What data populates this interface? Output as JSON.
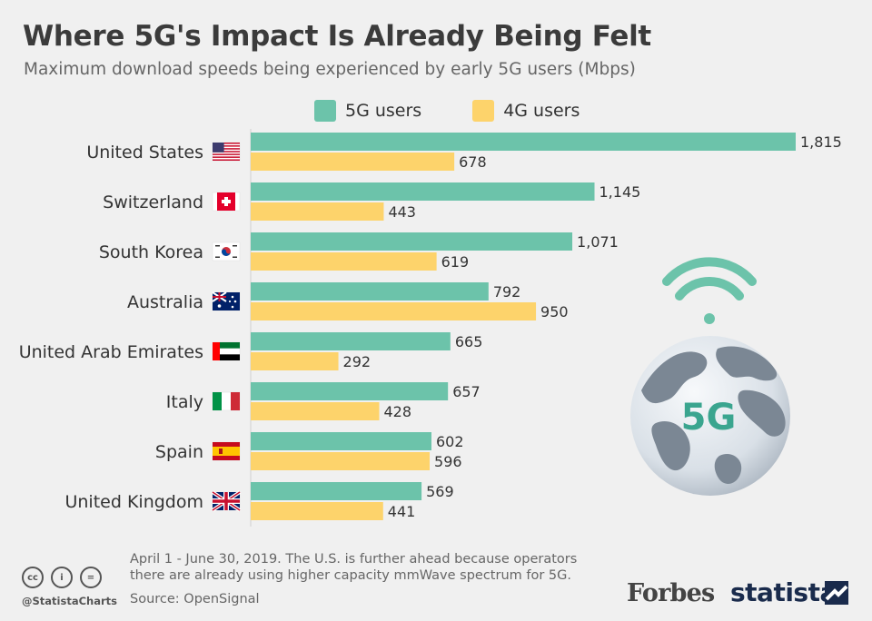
{
  "header": {
    "title": "Where 5G's Impact Is Already Being Felt",
    "subtitle": "Maximum download speeds being experienced by early 5G users (Mbps)"
  },
  "legend": {
    "items": [
      {
        "label": "5G users",
        "color": "#6cc3aa"
      },
      {
        "label": "4G users",
        "color": "#fdd36b"
      }
    ]
  },
  "chart_data": {
    "type": "bar",
    "orientation": "horizontal",
    "categories": [
      "United States",
      "Switzerland",
      "South Korea",
      "Australia",
      "United Arab Emirates",
      "Italy",
      "Spain",
      "United Kingdom"
    ],
    "series": [
      {
        "name": "5G users",
        "color": "#6cc3aa",
        "values": [
          1815,
          1145,
          1071,
          792,
          665,
          657,
          602,
          569
        ],
        "labels": [
          "1,815",
          "1,145",
          "1,071",
          "792",
          "665",
          "657",
          "602",
          "569"
        ]
      },
      {
        "name": "4G users",
        "color": "#fdd36b",
        "values": [
          678,
          443,
          619,
          950,
          292,
          428,
          596,
          441
        ],
        "labels": [
          "678",
          "443",
          "619",
          "950",
          "292",
          "428",
          "596",
          "441"
        ]
      }
    ],
    "flags": [
      "us-flag-icon",
      "switzerland-flag-icon",
      "south-korea-flag-icon",
      "australia-flag-icon",
      "uae-flag-icon",
      "italy-flag-icon",
      "spain-flag-icon",
      "uk-flag-icon"
    ],
    "xlim": [
      0,
      1815
    ],
    "grid": false
  },
  "illustration": {
    "label": "5G"
  },
  "footer": {
    "note_line1": "April 1 - June 30, 2019. The U.S. is further ahead because operators",
    "note_line2": "there are already using higher capacity mmWave spectrum for 5G.",
    "source": "Source: OpenSignal",
    "handle": "@StatistaCharts",
    "cc_icons": [
      "cc-icon",
      "by-icon",
      "nd-icon"
    ],
    "cc_glyphs": [
      "cc",
      "i",
      "="
    ],
    "forbes": "Forbes",
    "statista": "statista"
  }
}
